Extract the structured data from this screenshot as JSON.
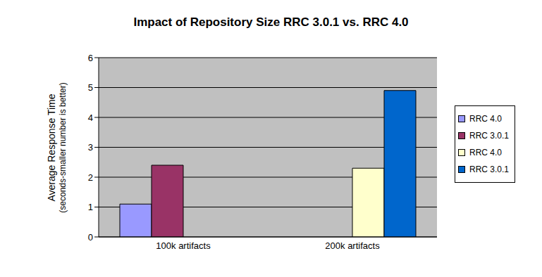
{
  "chart_data": {
    "type": "bar",
    "title": "Impact of Repository Size RRC 3.0.1 vs. RRC 4.0",
    "y_label": "Average Response Time\n(seconds-smaller number is better)",
    "categories": [
      "100k artifacts",
      "200k artifacts"
    ],
    "series": [
      {
        "name": "RRC 4.0",
        "color": "#9999ff",
        "values": [
          1.1,
          null
        ]
      },
      {
        "name": "RRC 3.0.1",
        "color": "#993366",
        "values": [
          2.4,
          null
        ]
      },
      {
        "name": "RRC 4.0",
        "color": "#ffffcc",
        "values": [
          null,
          2.3
        ]
      },
      {
        "name": "RRC 3.0.1",
        "color": "#0066cc",
        "values": [
          null,
          4.9
        ]
      }
    ],
    "ylim": [
      0,
      6
    ],
    "yticks": [
      0,
      1,
      2,
      3,
      4,
      5,
      6
    ],
    "grid": true,
    "legend": "right"
  }
}
